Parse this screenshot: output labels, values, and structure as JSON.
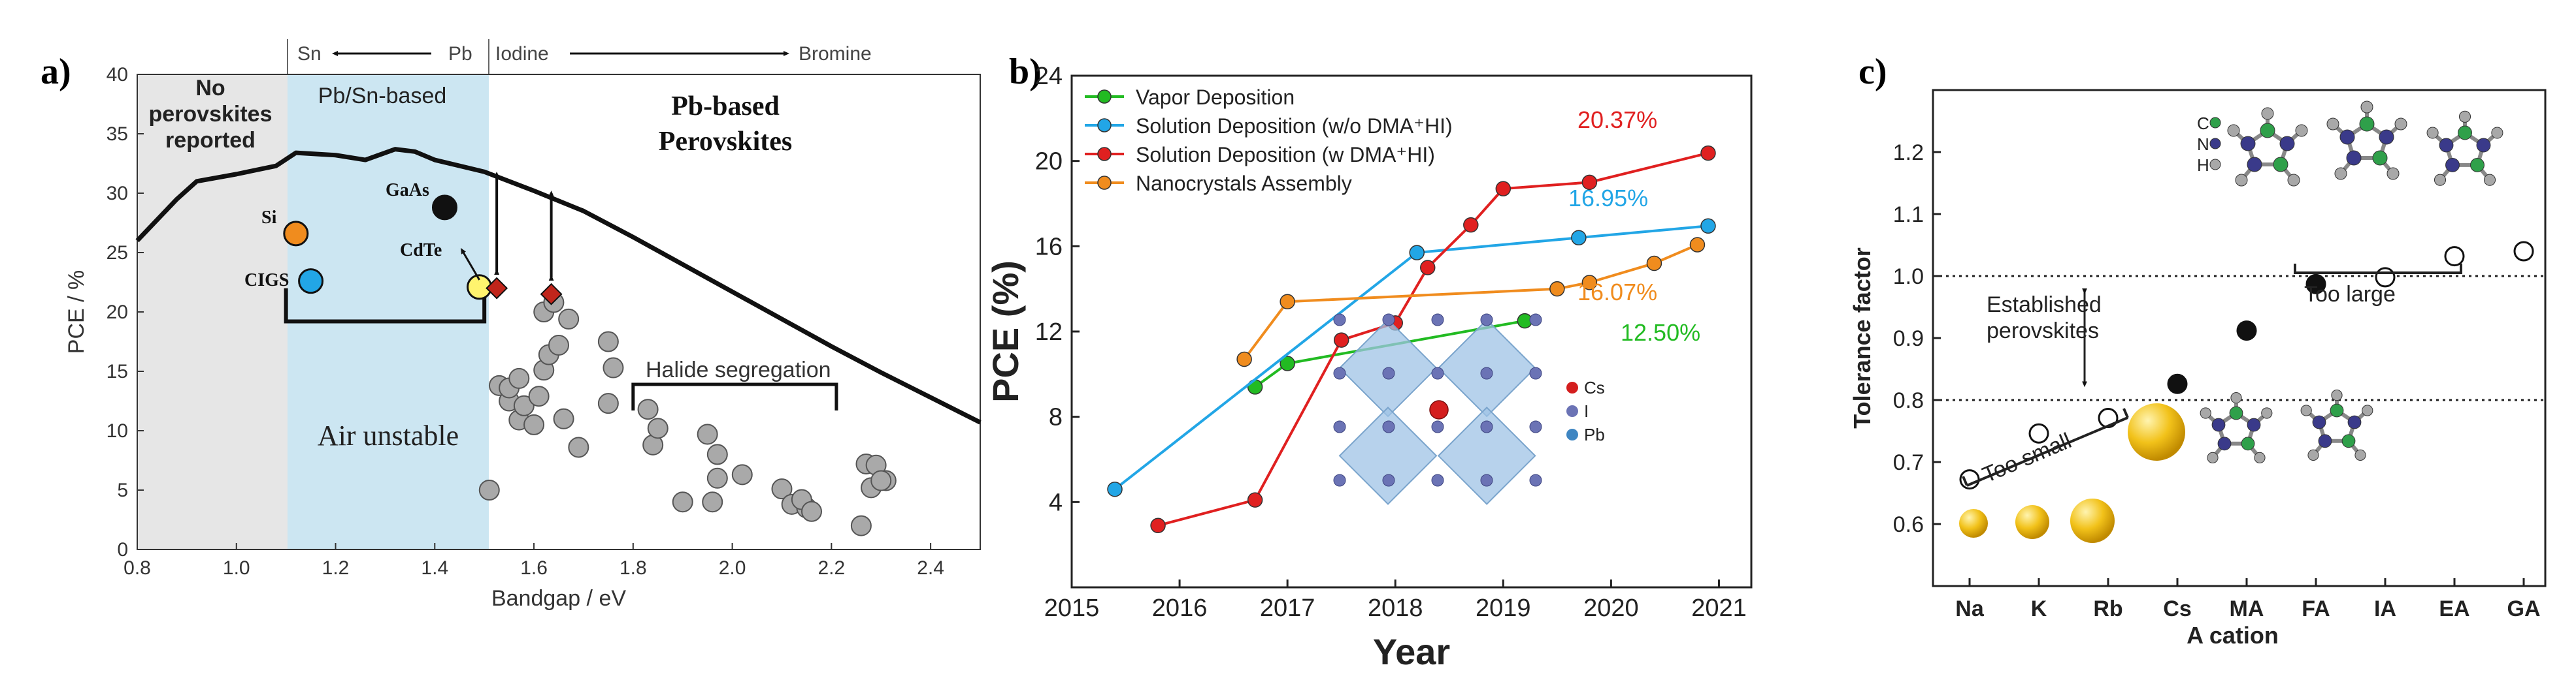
{
  "panels": {
    "a": {
      "label": "a)",
      "top_sn": "Sn",
      "top_pb": "Pb",
      "top_iodine": "Iodine",
      "top_bromine": "Bromine",
      "region_none": [
        "No",
        "perovskites",
        "reported"
      ],
      "region_pbsn": "Pb/Sn-based",
      "region_pb": [
        "Pb-based",
        "Perovskites"
      ],
      "air_unstable": "Air unstable",
      "halide_segregation": "Halide segregation",
      "lbl_si": "Si",
      "lbl_cigs": "CIGS",
      "lbl_gaas": "GaAs",
      "lbl_cdte": "CdTe"
    },
    "b": {
      "label": "b)"
    },
    "c": {
      "label": "c)",
      "established": [
        "Established",
        "perovskites"
      ],
      "too_small": "Too small",
      "too_large": "Too large",
      "legend_c": "C",
      "legend_n": "N",
      "legend_h": "H"
    }
  },
  "colors": {
    "vapor": "#22bb22",
    "sol_wo": "#22a6e6",
    "sol_w": "#e02020",
    "nano": "#f08c1e",
    "pbsn_fill": "#cce6f2",
    "none_fill": "#e6e6e6"
  },
  "chart_data": [
    {
      "type": "scatter",
      "title": "",
      "xlabel": "Bandgap / eV",
      "ylabel": "PCE / %",
      "xlim": [
        0.8,
        2.5
      ],
      "ylim": [
        0,
        40
      ],
      "xticks": [
        0.8,
        1.0,
        1.2,
        1.4,
        1.6,
        1.8,
        2.0,
        2.2,
        2.4
      ],
      "yticks": [
        0,
        5,
        10,
        15,
        20,
        25,
        30,
        35,
        40
      ],
      "sq_limit": {
        "name": "Shockley-Queisser limit",
        "x": [
          0.8,
          0.88,
          0.92,
          1.0,
          1.08,
          1.12,
          1.2,
          1.26,
          1.32,
          1.36,
          1.4,
          1.5,
          1.6,
          1.7,
          1.8,
          1.9,
          2.0,
          2.1,
          2.2,
          2.3,
          2.4,
          2.5
        ],
        "y": [
          26,
          29.5,
          31,
          31.6,
          32.3,
          33.4,
          33.2,
          32.8,
          33.7,
          33.5,
          32.8,
          31.8,
          30.2,
          28.5,
          26.3,
          24.0,
          21.7,
          19.4,
          17.1,
          14.9,
          12.8,
          10.7
        ]
      },
      "reference_cells": [
        {
          "name": "Si",
          "x": 1.12,
          "y": 26.6
        },
        {
          "name": "CIGS",
          "x": 1.15,
          "y": 22.6
        },
        {
          "name": "GaAs",
          "x": 1.42,
          "y": 28.8
        },
        {
          "name": "CdTe",
          "x": 1.49,
          "y": 22.1
        }
      ],
      "perovskite_points": {
        "x": [
          1.51,
          1.53,
          1.55,
          1.55,
          1.57,
          1.57,
          1.58,
          1.6,
          1.61,
          1.62,
          1.62,
          1.63,
          1.64,
          1.65,
          1.66,
          1.67,
          1.69,
          1.75,
          1.76,
          1.75,
          1.83,
          1.84,
          1.85,
          1.9,
          1.95,
          1.97,
          1.97,
          1.96,
          2.02,
          2.1,
          2.12,
          2.15,
          2.14,
          2.16,
          2.27,
          2.29,
          2.31,
          2.28,
          2.3,
          2.26
        ],
        "y": [
          5.0,
          13.8,
          12.5,
          13.6,
          14.4,
          10.9,
          12.1,
          10.5,
          12.9,
          15.1,
          20.0,
          16.4,
          20.8,
          17.2,
          11.0,
          19.4,
          8.6,
          17.5,
          15.3,
          12.3,
          11.8,
          8.8,
          10.2,
          4.0,
          9.7,
          8.0,
          6.0,
          4.0,
          6.3,
          5.1,
          3.8,
          3.5,
          4.2,
          3.2,
          7.2,
          7.1,
          5.8,
          5.2,
          5.8,
          2.0
        ]
      },
      "pb_tandem_markers": [
        {
          "x": 1.525,
          "y": 22.0
        },
        {
          "x": 1.635,
          "y": 21.5
        }
      ],
      "regions": [
        {
          "name": "No perovskites reported",
          "xrange": [
            0.8,
            1.1
          ]
        },
        {
          "name": "Pb/Sn-based",
          "xrange": [
            1.1,
            1.5
          ]
        },
        {
          "name": "Pb-based Perovskites",
          "xrange": [
            1.5,
            2.5
          ]
        }
      ]
    },
    {
      "type": "line",
      "title": "",
      "xlabel": "Year",
      "ylabel": "PCE (%)",
      "xlim": [
        2015,
        2021.3
      ],
      "ylim": [
        0,
        24
      ],
      "xticks": [
        2015,
        2016,
        2017,
        2018,
        2019,
        2020,
        2021
      ],
      "yticks": [
        4,
        8,
        12,
        16,
        20,
        24
      ],
      "series": [
        {
          "name": "Vapor Deposition",
          "x": [
            2016.7,
            2017.0,
            2019.2
          ],
          "y": [
            9.4,
            10.5,
            12.5
          ],
          "end_label": "12.50%"
        },
        {
          "name": "Solution Deposition (w/o DMA⁺HI)",
          "x": [
            2015.4,
            2018.2,
            2019.7,
            2020.9
          ],
          "y": [
            4.6,
            15.7,
            16.4,
            16.95
          ],
          "end_label": "16.95%"
        },
        {
          "name": "Solution Deposition (w DMA⁺HI)",
          "x": [
            2015.8,
            2016.7,
            2017.5,
            2018.0,
            2018.3,
            2018.7,
            2019.0,
            2019.8,
            2020.9
          ],
          "y": [
            2.9,
            4.1,
            11.6,
            12.4,
            15.0,
            17.0,
            18.7,
            19.0,
            20.37
          ],
          "end_label": "20.37%"
        },
        {
          "name": "Nanocrystals Assembly",
          "x": [
            2016.6,
            2017.0,
            2019.5,
            2019.8,
            2020.4,
            2020.8
          ],
          "y": [
            10.7,
            13.4,
            14.0,
            14.3,
            15.2,
            16.07
          ],
          "end_label": "16.07%"
        }
      ],
      "inset_legend": [
        "Cs",
        "I",
        "Pb"
      ]
    },
    {
      "type": "scatter",
      "title": "",
      "xlabel": "A cation",
      "ylabel": "Tolerance factor",
      "ylim": [
        0.5,
        1.3
      ],
      "yticks": [
        0.6,
        0.7,
        0.8,
        0.9,
        1.0,
        1.1,
        1.2
      ],
      "categories": [
        "Na",
        "K",
        "Rb",
        "Cs",
        "MA",
        "FA",
        "IA",
        "EA",
        "GA"
      ],
      "values": [
        0.672,
        0.746,
        0.771,
        0.826,
        0.912,
        0.987,
        0.998,
        1.032,
        1.04
      ],
      "filled": [
        false,
        false,
        false,
        true,
        true,
        true,
        false,
        false,
        false
      ],
      "reference_lines": [
        0.8,
        1.0
      ]
    }
  ]
}
